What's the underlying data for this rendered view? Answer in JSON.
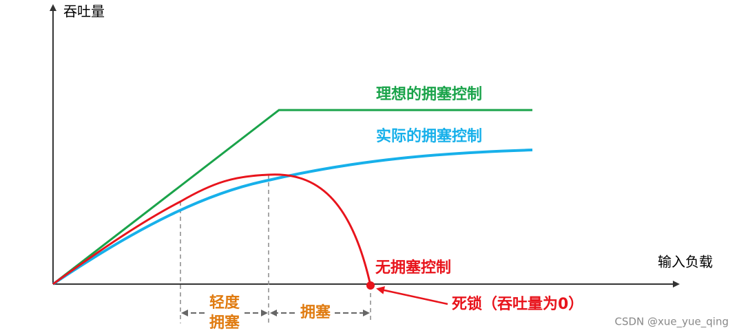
{
  "axes": {
    "y_label": "吞吐量",
    "x_label": "输入负载"
  },
  "curves": [
    {
      "label": "理想的拥塞控制"
    },
    {
      "label": "实际的拥塞控制"
    },
    {
      "label": "无拥塞控制"
    }
  ],
  "regions": {
    "light": [
      "轻度",
      "拥塞"
    ],
    "congestion": "拥塞"
  },
  "annotation": "死锁（吞吐量为0）",
  "watermark": "CSDN @xue_yue_qing"
}
